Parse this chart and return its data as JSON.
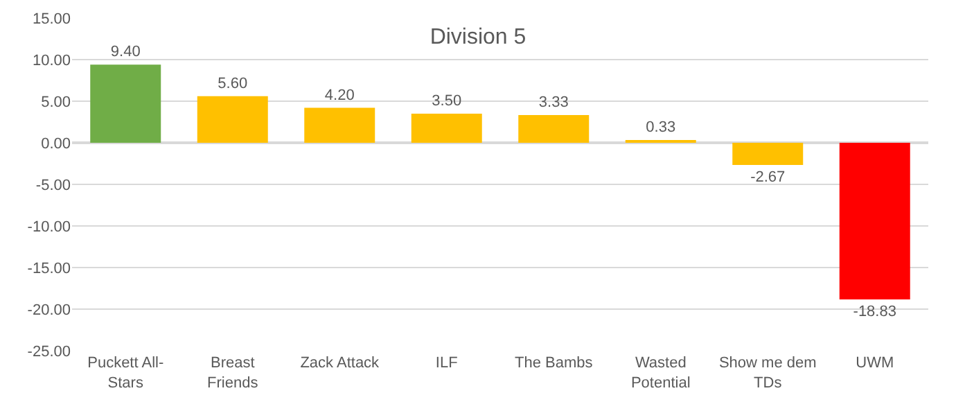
{
  "chart_data": {
    "type": "bar",
    "title": "Division 5",
    "categories": [
      "Puckett All-Stars",
      "Breast Friends",
      "Zack Attack",
      "ILF",
      "The Bambs",
      "Wasted Potential",
      "Show me dem TDs",
      "UWM"
    ],
    "values": [
      9.4,
      5.6,
      4.2,
      3.5,
      3.33,
      0.33,
      -2.67,
      -18.83
    ],
    "value_labels": [
      "9.40",
      "5.60",
      "4.20",
      "3.50",
      "3.33",
      "0.33",
      "-2.67",
      "-18.83"
    ],
    "colors": [
      "#70ad47",
      "#ffc000",
      "#ffc000",
      "#ffc000",
      "#ffc000",
      "#ffc000",
      "#ffc000",
      "#ff0000"
    ],
    "ylim": [
      -25,
      15
    ],
    "yticks": [
      {
        "value": -25,
        "label": "-25.00"
      },
      {
        "value": -20,
        "label": "-20.00"
      },
      {
        "value": -15,
        "label": "-15.00"
      },
      {
        "value": -10,
        "label": "-10.00"
      },
      {
        "value": -5,
        "label": "-5.00"
      },
      {
        "value": 0,
        "label": "0.00"
      },
      {
        "value": 5,
        "label": "5.00"
      },
      {
        "value": 10,
        "label": "10.00"
      },
      {
        "value": 15,
        "label": "15.00"
      }
    ],
    "grid": "y",
    "legend": false
  }
}
